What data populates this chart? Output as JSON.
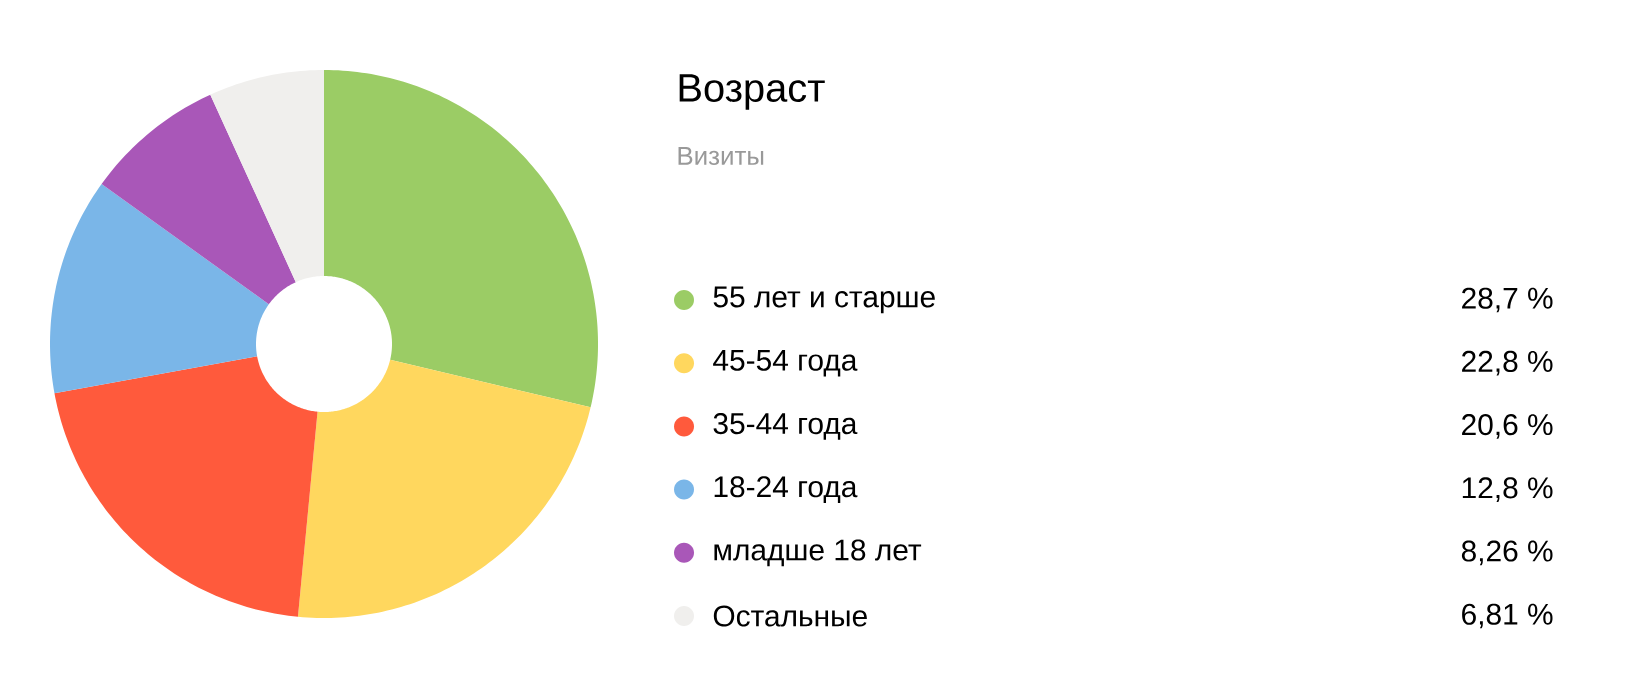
{
  "chart_data": {
    "type": "donut",
    "title": "Возраст",
    "subtitle": "Визиты",
    "categories": [
      "55 лет и старше",
      "45-54 года",
      "35-44 года",
      "18-24 года",
      "младше 18 лет",
      "Остальные"
    ],
    "values": [
      28.7,
      22.8,
      20.6,
      12.8,
      8.26,
      6.81
    ],
    "value_labels": [
      "28,7 %",
      "22,8 %",
      "20,6 %",
      "12,8 %",
      "8,26 %",
      "6,81 %"
    ],
    "colors": [
      "#9bcc65",
      "#ffd75e",
      "#ff5a3c",
      "#7ab6e8",
      "#a957b8",
      "#f0efed"
    ],
    "legend": "right"
  }
}
